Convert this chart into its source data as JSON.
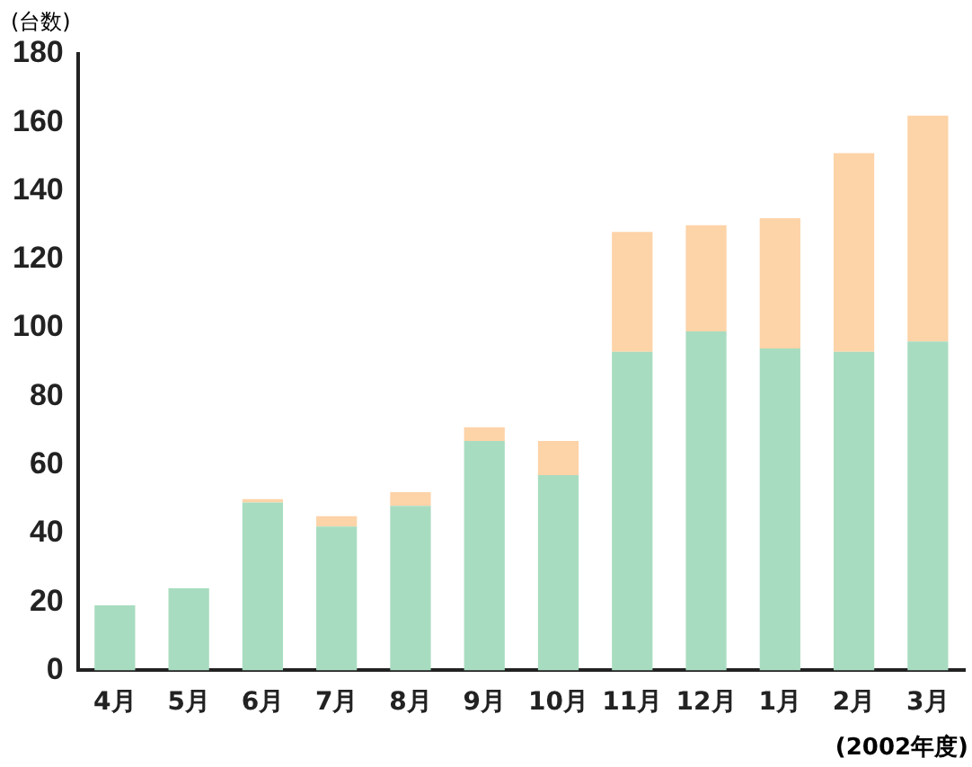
{
  "chart_data": {
    "type": "bar",
    "stacked": true,
    "ylabel": "(台数)",
    "annotations": [
      "(2002年度)"
    ],
    "categories": [
      "4月",
      "5月",
      "6月",
      "7月",
      "8月",
      "9月",
      "10月",
      "11月",
      "12月",
      "1月",
      "2月",
      "3月"
    ],
    "series": [
      {
        "color": "#a8dcc0",
        "values": [
          19,
          24,
          49,
          42,
          48,
          67,
          57,
          93,
          99,
          94,
          93,
          96
        ]
      },
      {
        "color": "#fdd3a8",
        "values": [
          0,
          0,
          1,
          3,
          4,
          4,
          10,
          35,
          31,
          38,
          58,
          66
        ]
      }
    ],
    "ylim": [
      0,
      180
    ],
    "yticks": [
      0,
      20,
      40,
      60,
      80,
      100,
      120,
      140,
      160,
      180
    ],
    "grid": false,
    "legend": false
  }
}
